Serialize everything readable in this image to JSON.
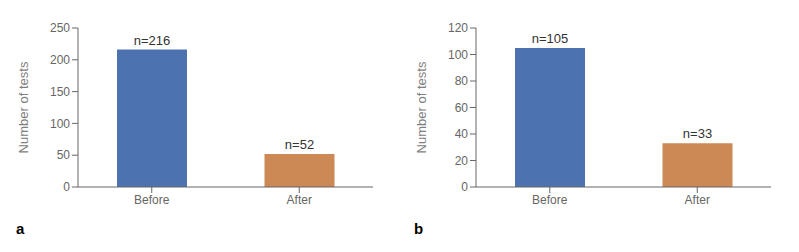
{
  "chart_data": [
    {
      "type": "bar",
      "categories": [
        "Before",
        "After"
      ],
      "values": [
        216,
        52
      ],
      "value_labels": [
        "n=216",
        "n=52"
      ],
      "colors": [
        "#4c72b0",
        "#cc8855"
      ],
      "ylabel": "Number of tests",
      "ylim": [
        0,
        250
      ],
      "yticks": [
        0,
        50,
        100,
        150,
        200,
        250
      ],
      "annotation": "a"
    },
    {
      "type": "bar",
      "categories": [
        "Before",
        "After"
      ],
      "values": [
        105,
        33
      ],
      "value_labels": [
        "n=105",
        "n=33"
      ],
      "colors": [
        "#4c72b0",
        "#cc8855"
      ],
      "ylabel": "Number of tests",
      "ylim": [
        0,
        120
      ],
      "yticks": [
        0,
        20,
        40,
        60,
        80,
        100,
        120
      ],
      "annotation": "b"
    }
  ]
}
